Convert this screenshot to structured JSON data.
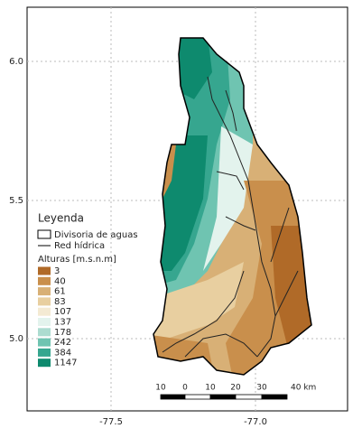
{
  "map": {
    "lat_labels": [
      "6.0",
      "5.5",
      "5.0"
    ],
    "lon_labels": [
      "-77.5",
      "-77.0"
    ]
  },
  "legend": {
    "title": "Leyenda",
    "divide": "Divisoria de aguas",
    "rivers": "Red hídrica",
    "elevation_title": "Alturas [m.s.n.m]",
    "classes": [
      {
        "label": "3",
        "color": "#b06a28"
      },
      {
        "label": "40",
        "color": "#c98f4c"
      },
      {
        "label": "61",
        "color": "#d8b076"
      },
      {
        "label": "83",
        "color": "#e8cfa0"
      },
      {
        "label": "107",
        "color": "#f4ead3"
      },
      {
        "label": "137",
        "color": "#e3f3ed"
      },
      {
        "label": "178",
        "color": "#acdcd0"
      },
      {
        "label": "242",
        "color": "#6fc4b1"
      },
      {
        "label": "384",
        "color": "#36a68f"
      },
      {
        "label": "1147",
        "color": "#0e8a6e"
      }
    ]
  },
  "scale_bar": {
    "labels": [
      "10",
      "0",
      "10",
      "20",
      "30",
      "40 km"
    ]
  }
}
